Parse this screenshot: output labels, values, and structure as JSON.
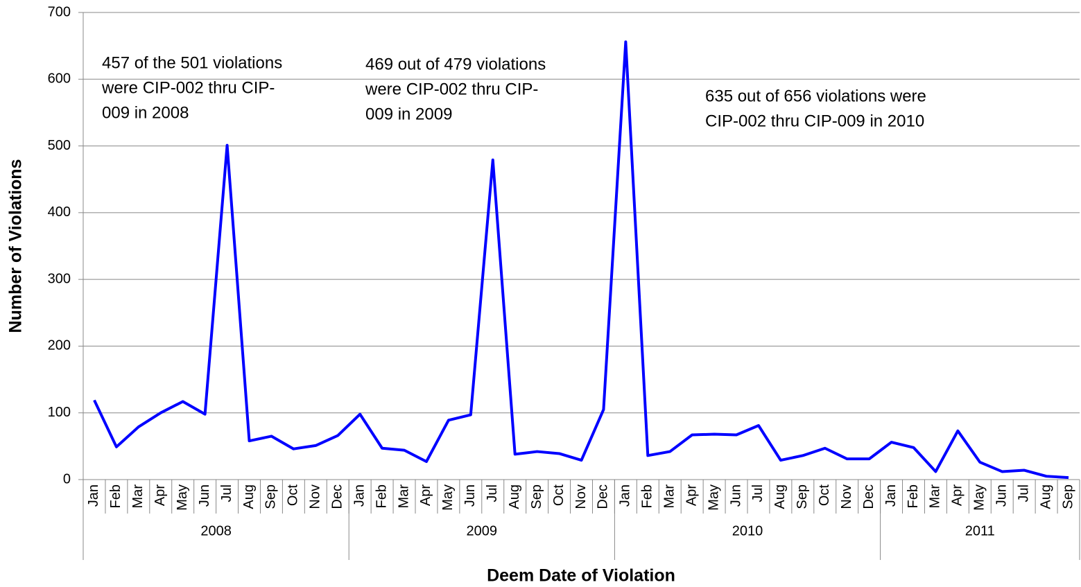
{
  "chart_data": {
    "type": "line",
    "x_label": "Deem Date of Violation",
    "y_label": "Number of Violations",
    "categories": [
      "Jan",
      "Feb",
      "Mar",
      "Apr",
      "May",
      "Jun",
      "Jul",
      "Aug",
      "Sep",
      "Oct",
      "Nov",
      "Dec",
      "Jan",
      "Feb",
      "Mar",
      "Apr",
      "May",
      "Jun",
      "Jul",
      "Aug",
      "Sep",
      "Oct",
      "Nov",
      "Dec",
      "Jan",
      "Feb",
      "Mar",
      "Apr",
      "May",
      "Jun",
      "Jul",
      "Aug",
      "Sep",
      "Oct",
      "Nov",
      "Dec",
      "Jan",
      "Feb",
      "Mar",
      "Apr",
      "May",
      "Jun",
      "Jul",
      "Aug",
      "Sep"
    ],
    "category_groups": [
      {
        "label": "2008",
        "size": 12
      },
      {
        "label": "2009",
        "size": 12
      },
      {
        "label": "2010",
        "size": 12
      },
      {
        "label": "2011",
        "size": 9
      }
    ],
    "series": [
      {
        "name": "Violations",
        "color": "#0000ff",
        "values": [
          119,
          49,
          79,
          100,
          117,
          98,
          501,
          58,
          65,
          46,
          51,
          66,
          98,
          47,
          44,
          27,
          89,
          97,
          479,
          38,
          42,
          39,
          29,
          105,
          656,
          36,
          42,
          67,
          68,
          67,
          81,
          29,
          36,
          47,
          31,
          31,
          56,
          48,
          12,
          73,
          26,
          12,
          14,
          5,
          3
        ]
      }
    ],
    "ylim": [
      0,
      700
    ],
    "yticks": [
      0,
      100,
      200,
      300,
      400,
      500,
      600,
      700
    ],
    "grid": true,
    "annotations": [
      {
        "lines": [
          "457 of the 501 violations",
          "were CIP-002 thru CIP-",
          "009 in 2008"
        ]
      },
      {
        "lines": [
          "469 out of 479 violations",
          "were CIP-002 thru CIP-",
          "009 in 2009"
        ]
      },
      {
        "lines": [
          "635 out of 656 violations were",
          "CIP-002 thru CIP-009 in 2010"
        ]
      }
    ]
  }
}
